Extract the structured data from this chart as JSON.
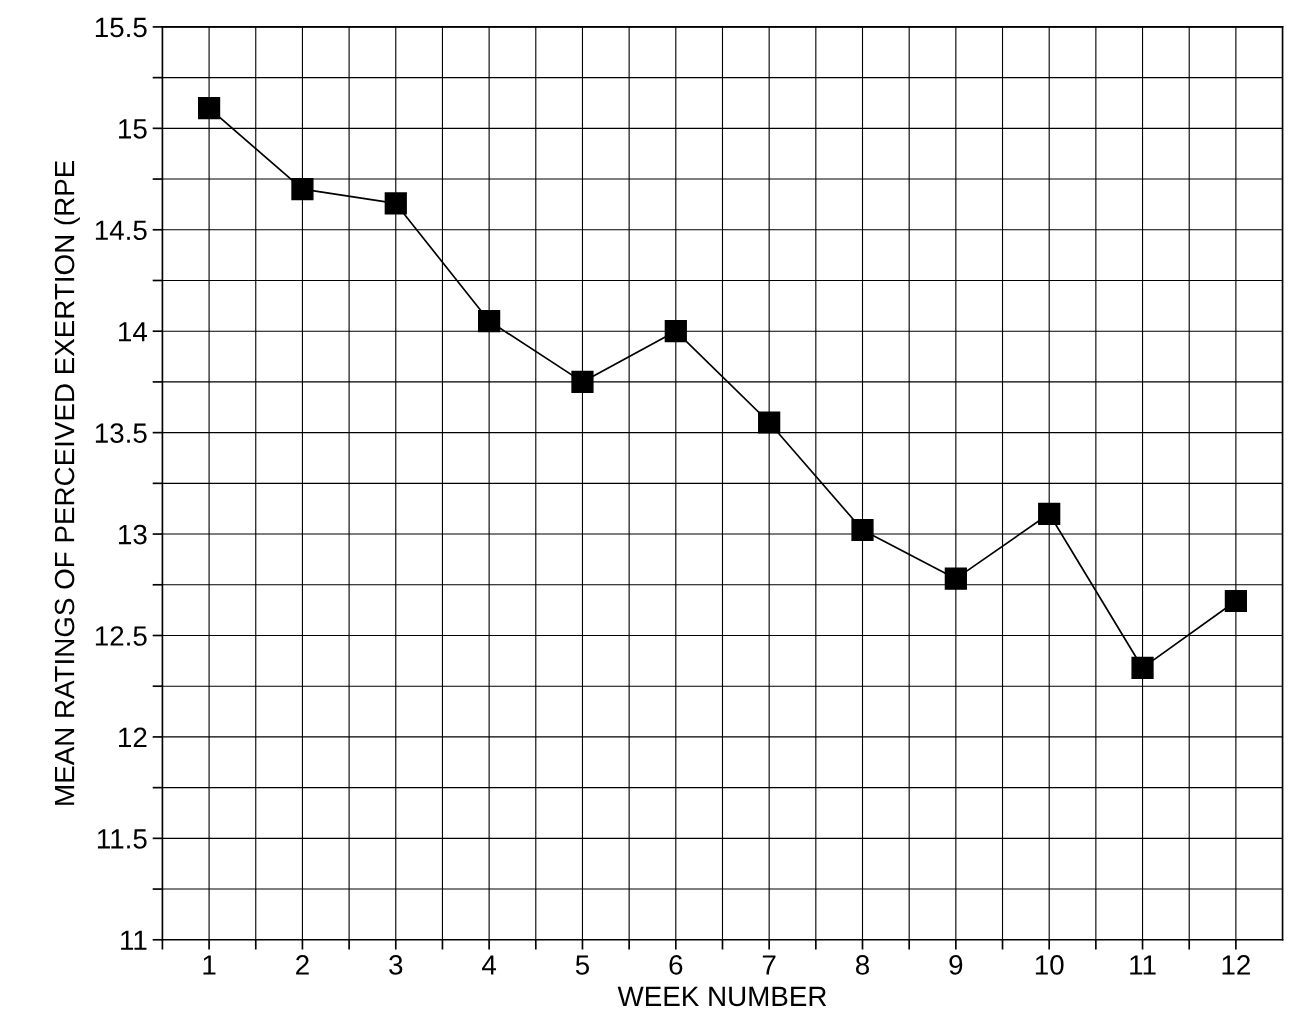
{
  "chart_data": {
    "type": "line",
    "xlabel": "WEEK NUMBER",
    "ylabel": "MEAN RATINGS OF PERCEIVED EXERTION (RPE",
    "x": [
      1,
      2,
      3,
      4,
      5,
      6,
      7,
      8,
      9,
      10,
      11,
      12
    ],
    "series": [
      {
        "color": "#000000",
        "values": [
          15.1,
          14.7,
          14.63,
          14.05,
          13.75,
          14.0,
          13.55,
          13.02,
          12.78,
          13.1,
          12.34,
          12.67
        ]
      }
    ],
    "marker": "square",
    "line_style": "solid",
    "grid": true,
    "xlim": [
      0.5,
      12.5
    ],
    "xticks": [
      {
        "value": 0.5,
        "label": null
      },
      1,
      {
        "value": 1.5,
        "label": null
      },
      2,
      {
        "value": 2.5,
        "label": null
      },
      3,
      {
        "value": 3.5,
        "label": null
      },
      4,
      {
        "value": 4.5,
        "label": null
      },
      5,
      {
        "value": 5.5,
        "label": null
      },
      6,
      {
        "value": 6.5,
        "label": null
      },
      7,
      {
        "value": 7.5,
        "label": null
      },
      8,
      {
        "value": 8.5,
        "label": null
      },
      9,
      {
        "value": 9.5,
        "label": null
      },
      10,
      {
        "value": 10.5,
        "label": null
      },
      11,
      {
        "value": 11.5,
        "label": null
      },
      12
    ],
    "ylim": [
      11,
      15.5
    ],
    "yticks": [
      11,
      {
        "value": 11.25,
        "label": null
      },
      11.5,
      {
        "value": 11.75,
        "label": null
      },
      12,
      {
        "value": 12.25,
        "label": null
      },
      12.5,
      {
        "value": 12.75,
        "label": null
      },
      13,
      {
        "value": 13.25,
        "label": null
      },
      13.5,
      {
        "value": 13.75,
        "label": null
      },
      14,
      {
        "value": 14.25,
        "label": null
      },
      14.5,
      {
        "value": 14.75,
        "label": null
      },
      15,
      {
        "value": 15.25,
        "label": null
      },
      15.5
    ]
  }
}
